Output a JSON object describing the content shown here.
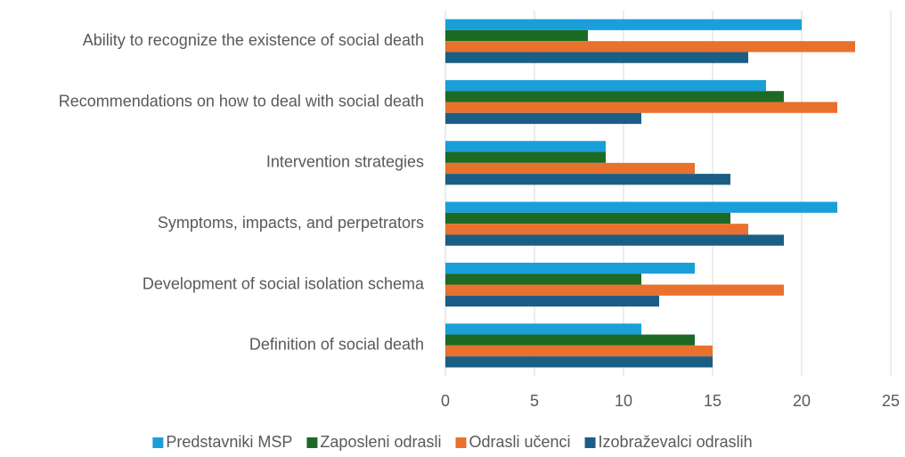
{
  "chart_data": {
    "type": "hbar",
    "categories": [
      "Ability to recognize the existence of social death",
      "Recommendations on how to deal with social death",
      "Intervention strategies",
      "Symptoms, impacts, and perpetrators",
      "Development of social isolation schema",
      "Definition of social death"
    ],
    "series": [
      {
        "name": "Predstavniki MSP",
        "color": "#1a9fd9",
        "values": [
          20,
          18,
          9,
          22,
          14,
          11
        ]
      },
      {
        "name": "Zaposleni odrasli",
        "color": "#1d6a24",
        "values": [
          8,
          19,
          9,
          16,
          11,
          14
        ]
      },
      {
        "name": "Odrasli učenci",
        "color": "#e8712d",
        "values": [
          23,
          22,
          14,
          17,
          19,
          15
        ]
      },
      {
        "name": "Izobraževalci odraslih",
        "color": "#1b5e85",
        "values": [
          17,
          11,
          16,
          19,
          12,
          15
        ]
      }
    ],
    "xlim": [
      0,
      25
    ],
    "xticks": [
      0,
      5,
      10,
      15,
      20,
      25
    ],
    "grid": true,
    "legend": "bottom"
  }
}
